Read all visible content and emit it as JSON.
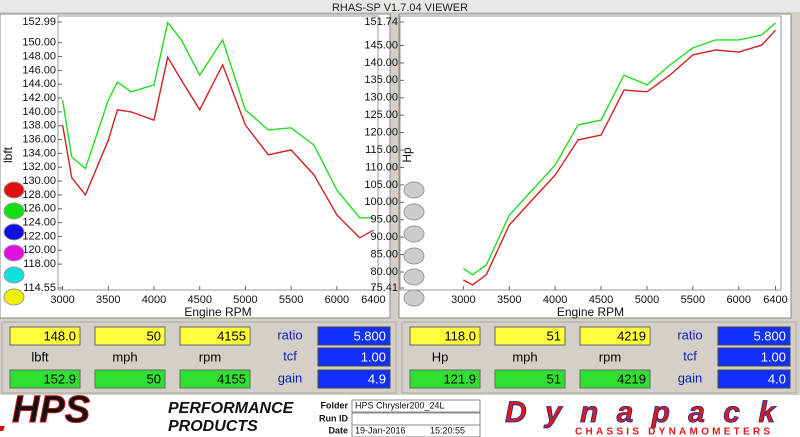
{
  "window_title": "RHAS-SP V1.7.04  VIEWER",
  "chart_data": [
    {
      "type": "line",
      "ylabel": "lbft",
      "xlabel": "Engine RPM",
      "x": [
        3000,
        3100,
        3250,
        3500,
        3600,
        3750,
        4000,
        4150,
        4300,
        4500,
        4750,
        5000,
        5250,
        5500,
        5750,
        6000,
        6250,
        6400
      ],
      "series": [
        {
          "color": "#d42020",
          "values": [
            138.1,
            130.5,
            128.0,
            135.9,
            140.3,
            140.0,
            138.8,
            147.9,
            144.6,
            140.3,
            146.8,
            138.1,
            133.8,
            134.5,
            130.9,
            125.1,
            121.8,
            122.9
          ]
        },
        {
          "color": "#22dd22",
          "values": [
            141.7,
            133.5,
            131.8,
            141.7,
            144.3,
            142.9,
            143.9,
            152.9,
            150.4,
            145.3,
            150.4,
            140.3,
            137.4,
            137.7,
            135.2,
            128.7,
            124.7,
            124.7
          ]
        }
      ],
      "xlim": [
        2950,
        6450
      ],
      "xticks": [
        3000,
        3500,
        4000,
        4500,
        5000,
        5500,
        6000,
        6400
      ],
      "ylim": [
        114.55,
        152.99
      ],
      "yticks": [
        152.99,
        {
          "value": 150,
          "label": "150.00"
        },
        {
          "value": 148,
          "label": "148.00"
        },
        {
          "value": 146,
          "label": "146.00"
        },
        {
          "value": 144,
          "label": "144.00"
        },
        {
          "value": 142,
          "label": "142.00"
        },
        {
          "value": 140,
          "label": "140.00"
        },
        {
          "value": 138,
          "label": "138.00"
        },
        {
          "value": 136,
          "label": "136.00"
        },
        {
          "value": 134,
          "label": "134.00"
        },
        {
          "value": 132,
          "label": "132.00"
        },
        {
          "value": 130,
          "label": "130.00"
        },
        {
          "value": 128,
          "label": "128.00"
        },
        {
          "value": 126,
          "label": "126.00"
        },
        {
          "value": 124,
          "label": "124.00"
        },
        {
          "value": 122,
          "label": "122.00"
        },
        {
          "value": 120,
          "label": "120.00"
        },
        {
          "value": 118,
          "label": "118.00"
        },
        114.55
      ]
    },
    {
      "type": "line",
      "ylabel": "Hp",
      "xlabel": "Engine RPM",
      "x": [
        3000,
        3100,
        3250,
        3500,
        3750,
        4000,
        4250,
        4500,
        4750,
        5000,
        5250,
        5500,
        5750,
        6000,
        6250,
        6400
      ],
      "series": [
        {
          "color": "#d42020",
          "values": [
            77.7,
            76.3,
            79.2,
            93.5,
            100.7,
            107.8,
            117.9,
            119.3,
            132.2,
            131.7,
            136.5,
            142.3,
            143.7,
            143.1,
            145.1,
            149.4
          ]
        },
        {
          "color": "#22dd22",
          "values": [
            81.1,
            79.2,
            82.0,
            96.3,
            103.5,
            110.7,
            122.2,
            123.6,
            136.5,
            133.7,
            139.4,
            144.3,
            146.6,
            146.6,
            148.0,
            151.5
          ]
        }
      ],
      "xlim": [
        2310,
        6460
      ],
      "xticks": [
        3000,
        3500,
        4000,
        4500,
        5000,
        5500,
        6000,
        6400
      ],
      "ylim": [
        75.41,
        151.74
      ],
      "yticks": [
        151.74,
        {
          "value": 145,
          "label": "145.00"
        },
        {
          "value": 140,
          "label": "140.00"
        },
        {
          "value": 135,
          "label": "135.00"
        },
        {
          "value": 130,
          "label": "130.00"
        },
        {
          "value": 125,
          "label": "125.00"
        },
        {
          "value": 120,
          "label": "120.00"
        },
        {
          "value": 115,
          "label": "115.00"
        },
        {
          "value": 110,
          "label": "110.00"
        },
        {
          "value": 105,
          "label": "105.00"
        },
        {
          "value": 100,
          "label": "100.00"
        },
        {
          "value": 95,
          "label": "95.00"
        },
        {
          "value": 90,
          "label": "90.00"
        },
        {
          "value": 85,
          "label": "85.00"
        },
        {
          "value": 80,
          "label": "80.00"
        },
        75.41
      ]
    }
  ],
  "readouts": [
    {
      "top": [
        "148.0",
        "50",
        "4155"
      ],
      "units": [
        "lbft",
        "mph",
        "rpm"
      ],
      "bottom": [
        "152.9",
        "50",
        "4155"
      ],
      "settings": [
        {
          "label": "ratio",
          "value": "5.800"
        },
        {
          "label": "tcf",
          "value": "1.00"
        },
        {
          "label": "gain",
          "value": "4.9"
        }
      ]
    },
    {
      "top": [
        "118.0",
        "51",
        "4219"
      ],
      "units": [
        "Hp",
        "mph",
        "rpm"
      ],
      "bottom": [
        "121.9",
        "51",
        "4219"
      ],
      "settings": [
        {
          "label": "ratio",
          "value": "5.800"
        },
        {
          "label": "tcf",
          "value": "1.00"
        },
        {
          "label": "gain",
          "value": "4.0"
        }
      ]
    }
  ],
  "footer": {
    "brand": [
      "HPS",
      "PERFORMANCE",
      "PRODUCTS"
    ],
    "fields": [
      {
        "label": "Folder",
        "value": "HPS Chrysler200_24L"
      },
      {
        "label": "Run ID"
      },
      {
        "label": "Date",
        "value": "19-Jan-2016",
        "time": "15:20:55"
      }
    ],
    "dyno": [
      "Dynapack",
      "CHASSIS DYNAMOMETERS"
    ]
  }
}
